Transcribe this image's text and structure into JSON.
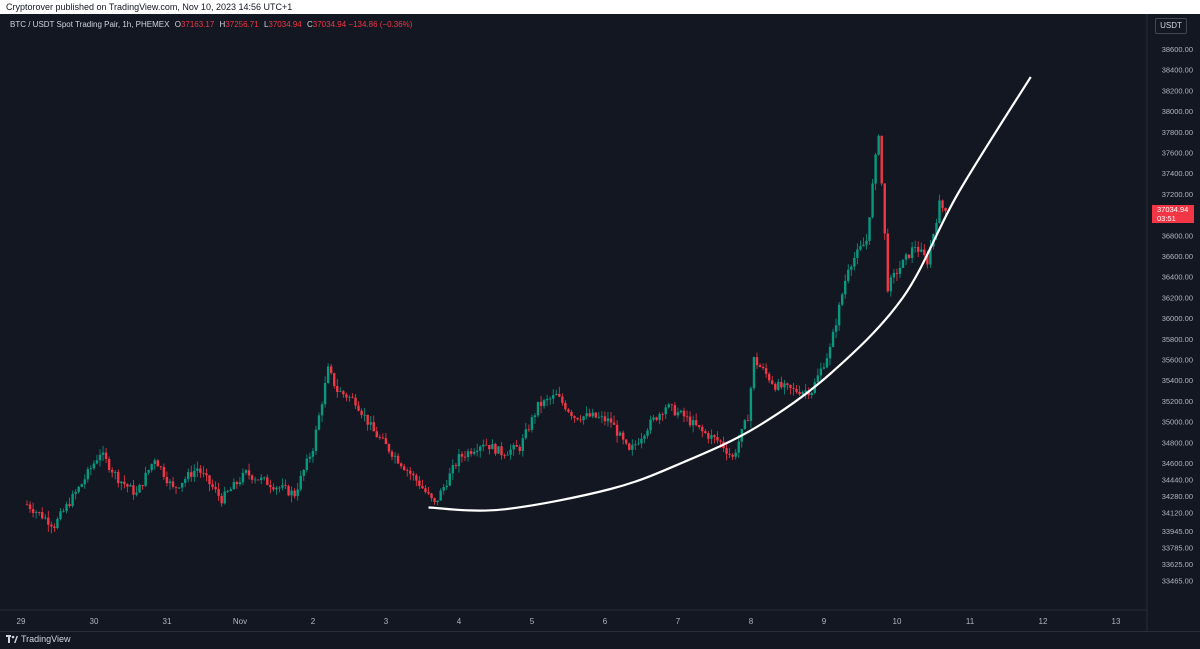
{
  "header": {
    "published_text": "Cryptorover published on TradingView.com, Nov 10, 2023 14:56 UTC+1"
  },
  "legend": {
    "symbol": "BTC / USDT Spot Trading Pair, 1h, PHEMEX",
    "open_label": "O",
    "open": "37163.17",
    "high_label": "H",
    "high": "37256.71",
    "low_label": "L",
    "low": "37034.94",
    "close_label": "C",
    "close": "37034.94",
    "change": "−134.86 (−0.36%)"
  },
  "price_axis": {
    "currency_button": "USDT",
    "last_price": "37034.94",
    "countdown": "03:51"
  },
  "footer": {
    "logo_text": "TradingView"
  },
  "colors": {
    "background": "#131722",
    "up_candle": "#089981",
    "down_candle": "#f23645",
    "curve": "#ffffff",
    "axis_text": "#b2b5be"
  },
  "chart_data": {
    "type": "candlestick",
    "title": "BTC / USDT Spot Trading Pair, 1h, PHEMEX",
    "xlabel": "",
    "ylabel": "",
    "ylim": [
      33400,
      38700
    ],
    "y_ticks": [
      "38600.00",
      "38400.00",
      "38200.00",
      "38000.00",
      "37800.00",
      "37600.00",
      "37400.00",
      "37200.00",
      "37000.00",
      "36800.00",
      "36600.00",
      "36400.00",
      "36200.00",
      "36000.00",
      "35800.00",
      "35600.00",
      "35400.00",
      "35200.00",
      "35000.00",
      "34800.00",
      "34600.00",
      "34440.00",
      "34280.00",
      "34120.00",
      "33945.00",
      "33785.00",
      "33625.00",
      "33465.00"
    ],
    "x_ticks": [
      "29",
      "30",
      "31",
      "Nov",
      "2",
      "3",
      "4",
      "5",
      "6",
      "7",
      "8",
      "9",
      "10",
      "11",
      "12",
      "13"
    ],
    "close_anchors": [
      {
        "x": "Oct 29 00:00",
        "close": 34200
      },
      {
        "x": "Oct 29 09:00",
        "close": 34000
      },
      {
        "x": "Oct 29 18:00",
        "close": 34400
      },
      {
        "x": "Oct 30 00:00",
        "close": 34700
      },
      {
        "x": "Oct 30 06:00",
        "close": 34450
      },
      {
        "x": "Oct 30 12:00",
        "close": 34300
      },
      {
        "x": "Oct 30 18:00",
        "close": 34650
      },
      {
        "x": "Oct 31 00:00",
        "close": 34350
      },
      {
        "x": "Oct 31 08:00",
        "close": 34550
      },
      {
        "x": "Oct 31 16:00",
        "close": 34250
      },
      {
        "x": "Nov 1 00:00",
        "close": 34500
      },
      {
        "x": "Nov 1 08:00",
        "close": 34400
      },
      {
        "x": "Nov 1 16:00",
        "close": 34300
      },
      {
        "x": "Nov 1 22:00",
        "close": 34750
      },
      {
        "x": "Nov 2 03:00",
        "close": 35500
      },
      {
        "x": "Nov 2 06:00",
        "close": 35300
      },
      {
        "x": "Nov 2 12:00",
        "close": 35200
      },
      {
        "x": "Nov 2 18:00",
        "close": 34900
      },
      {
        "x": "Nov 3 00:00",
        "close": 34700
      },
      {
        "x": "Nov 3 09:00",
        "close": 34400
      },
      {
        "x": "Nov 3 14:00",
        "close": 34200
      },
      {
        "x": "Nov 3 22:00",
        "close": 34650
      },
      {
        "x": "Nov 4 06:00",
        "close": 34800
      },
      {
        "x": "Nov 4 12:00",
        "close": 34700
      },
      {
        "x": "Nov 4 18:00",
        "close": 34750
      },
      {
        "x": "Nov 5 00:00",
        "close": 35150
      },
      {
        "x": "Nov 5 06:00",
        "close": 35250
      },
      {
        "x": "Nov 5 12:00",
        "close": 35050
      },
      {
        "x": "Nov 5 18:00",
        "close": 35050
      },
      {
        "x": "Nov 6 00:00",
        "close": 35000
      },
      {
        "x": "Nov 6 06:00",
        "close": 34700
      },
      {
        "x": "Nov 6 12:00",
        "close": 34950
      },
      {
        "x": "Nov 6 18:00",
        "close": 35150
      },
      {
        "x": "Nov 7 00:00",
        "close": 35050
      },
      {
        "x": "Nov 7 06:00",
        "close": 34900
      },
      {
        "x": "Nov 7 12:00",
        "close": 34800
      },
      {
        "x": "Nov 7 16:00",
        "close": 34650
      },
      {
        "x": "Nov 7 21:00",
        "close": 35050
      },
      {
        "x": "Nov 7 23:00",
        "close": 35600
      },
      {
        "x": "Nov 8 06:00",
        "close": 35350
      },
      {
        "x": "Nov 8 12:00",
        "close": 35300
      },
      {
        "x": "Nov 8 18:00",
        "close": 35300
      },
      {
        "x": "Nov 9 00:00",
        "close": 35700
      },
      {
        "x": "Nov 9 06:00",
        "close": 36500
      },
      {
        "x": "Nov 9 12:00",
        "close": 36750
      },
      {
        "x": "Nov 9 16:00",
        "close": 37800
      },
      {
        "x": "Nov 9 19:00",
        "close": 36300
      },
      {
        "x": "Nov 9 22:00",
        "close": 36450
      },
      {
        "x": "Nov 10 04:00",
        "close": 36700
      },
      {
        "x": "Nov 10 08:00",
        "close": 36550
      },
      {
        "x": "Nov 10 12:00",
        "close": 37100
      },
      {
        "x": "Nov 10 14:00",
        "close": 37034.94
      }
    ],
    "curve": {
      "color": "#ffffff",
      "points": [
        {
          "x": "Nov 3 12:00",
          "y": 34170
        },
        {
          "x": "Nov 4 12:00",
          "y": 34150
        },
        {
          "x": "Nov 6 00:00",
          "y": 34350
        },
        {
          "x": "Nov 7 00:00",
          "y": 34610
        },
        {
          "x": "Nov 8 00:00",
          "y": 34950
        },
        {
          "x": "Nov 9 00:00",
          "y": 35460
        },
        {
          "x": "Nov 10 00:00",
          "y": 36200
        },
        {
          "x": "Nov 10 18:00",
          "y": 37200
        },
        {
          "x": "Nov 11 18:00",
          "y": 38330
        }
      ]
    },
    "grid": false,
    "legend_position": "top-left"
  }
}
